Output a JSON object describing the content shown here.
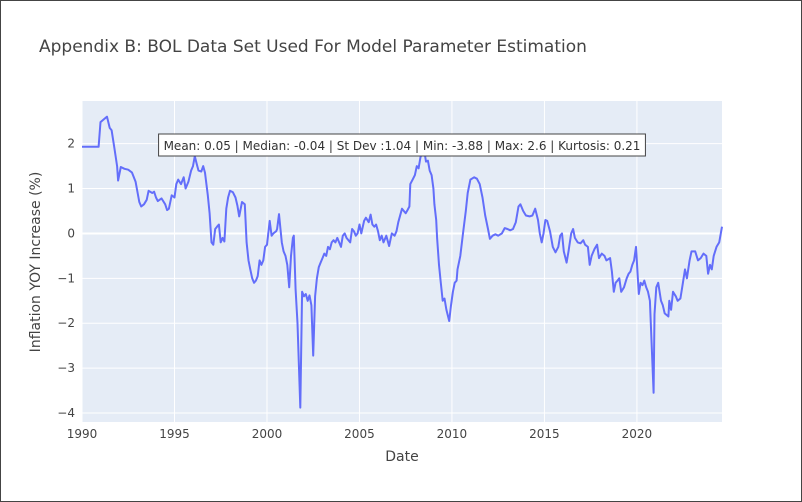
{
  "chart_data": {
    "type": "line",
    "title": "Appendix B: BOL Data Set Used For Model Parameter Estimation",
    "xlabel": "Date",
    "ylabel": "Inflation YOY Increase (%)",
    "xlim": [
      1990,
      2024.6
    ],
    "ylim": [
      -4.2,
      2.95
    ],
    "x_ticks": [
      1990,
      1995,
      2000,
      2005,
      2010,
      2015,
      2020
    ],
    "y_ticks": [
      -4,
      -3,
      -2,
      -1,
      0,
      1,
      2
    ],
    "y_tick_labels": [
      "−4",
      "−3",
      "−2",
      "−1",
      "0",
      "1",
      "2"
    ],
    "grid": true,
    "legend": "none",
    "annotation": "Mean: 0.05 | Median: -0.04 | St Dev :1.04 | Min: -3.88 | Max: 2.6 | Kurtosis: 0.21",
    "series": [
      {
        "color": "#636efa",
        "points": [
          [
            1990.0,
            1.93
          ],
          [
            1990.5,
            1.93
          ],
          [
            1990.9,
            1.93
          ],
          [
            1991.0,
            2.48
          ],
          [
            1991.2,
            2.55
          ],
          [
            1991.35,
            2.6
          ],
          [
            1991.5,
            2.35
          ],
          [
            1991.6,
            2.3
          ],
          [
            1991.75,
            1.9
          ],
          [
            1991.9,
            1.5
          ],
          [
            1991.95,
            1.18
          ],
          [
            1992.1,
            1.48
          ],
          [
            1992.3,
            1.44
          ],
          [
            1992.5,
            1.42
          ],
          [
            1992.7,
            1.36
          ],
          [
            1992.9,
            1.15
          ],
          [
            1993.1,
            0.7
          ],
          [
            1993.2,
            0.6
          ],
          [
            1993.35,
            0.65
          ],
          [
            1993.5,
            0.75
          ],
          [
            1993.6,
            0.95
          ],
          [
            1993.8,
            0.9
          ],
          [
            1993.9,
            0.93
          ],
          [
            1994.0,
            0.8
          ],
          [
            1994.1,
            0.72
          ],
          [
            1994.3,
            0.78
          ],
          [
            1994.5,
            0.65
          ],
          [
            1994.6,
            0.52
          ],
          [
            1994.7,
            0.55
          ],
          [
            1994.85,
            0.85
          ],
          [
            1995.0,
            0.8
          ],
          [
            1995.1,
            1.1
          ],
          [
            1995.2,
            1.2
          ],
          [
            1995.35,
            1.1
          ],
          [
            1995.5,
            1.25
          ],
          [
            1995.6,
            1.0
          ],
          [
            1995.75,
            1.15
          ],
          [
            1995.9,
            1.4
          ],
          [
            1996.0,
            1.5
          ],
          [
            1996.1,
            1.72
          ],
          [
            1996.2,
            1.55
          ],
          [
            1996.3,
            1.4
          ],
          [
            1996.45,
            1.38
          ],
          [
            1996.55,
            1.5
          ],
          [
            1996.65,
            1.35
          ],
          [
            1996.8,
            0.85
          ],
          [
            1996.9,
            0.45
          ],
          [
            1997.0,
            -0.2
          ],
          [
            1997.1,
            -0.25
          ],
          [
            1997.2,
            0.1
          ],
          [
            1997.3,
            0.15
          ],
          [
            1997.4,
            0.2
          ],
          [
            1997.5,
            -0.2
          ],
          [
            1997.6,
            -0.1
          ],
          [
            1997.7,
            -0.18
          ],
          [
            1997.8,
            0.55
          ],
          [
            1997.9,
            0.8
          ],
          [
            1998.0,
            0.95
          ],
          [
            1998.15,
            0.92
          ],
          [
            1998.3,
            0.8
          ],
          [
            1998.4,
            0.62
          ],
          [
            1998.5,
            0.38
          ],
          [
            1998.65,
            0.7
          ],
          [
            1998.8,
            0.65
          ],
          [
            1998.9,
            -0.2
          ],
          [
            1999.0,
            -0.6
          ],
          [
            1999.1,
            -0.8
          ],
          [
            1999.2,
            -1.0
          ],
          [
            1999.3,
            -1.1
          ],
          [
            1999.4,
            -1.05
          ],
          [
            1999.5,
            -0.95
          ],
          [
            1999.6,
            -0.6
          ],
          [
            1999.7,
            -0.7
          ],
          [
            1999.8,
            -0.6
          ],
          [
            1999.9,
            -0.3
          ],
          [
            2000.0,
            -0.25
          ],
          [
            2000.15,
            0.28
          ],
          [
            2000.25,
            -0.05
          ],
          [
            2000.35,
            0.0
          ],
          [
            2000.5,
            0.05
          ],
          [
            2000.55,
            0.1
          ],
          [
            2000.65,
            0.43
          ],
          [
            2000.8,
            -0.2
          ],
          [
            2000.9,
            -0.4
          ],
          [
            2001.0,
            -0.5
          ],
          [
            2001.1,
            -0.7
          ],
          [
            2001.2,
            -1.2
          ],
          [
            2001.3,
            -0.5
          ],
          [
            2001.4,
            -0.1
          ],
          [
            2001.45,
            -0.05
          ],
          [
            2001.55,
            -1.25
          ],
          [
            2001.65,
            -2.0
          ],
          [
            2001.8,
            -3.88
          ],
          [
            2001.9,
            -1.3
          ],
          [
            2002.0,
            -1.4
          ],
          [
            2002.1,
            -1.35
          ],
          [
            2002.2,
            -1.5
          ],
          [
            2002.3,
            -1.38
          ],
          [
            2002.4,
            -1.6
          ],
          [
            2002.5,
            -2.72
          ],
          [
            2002.6,
            -1.4
          ],
          [
            2002.7,
            -1.0
          ],
          [
            2002.8,
            -0.75
          ],
          [
            2002.9,
            -0.65
          ],
          [
            2003.0,
            -0.55
          ],
          [
            2003.1,
            -0.45
          ],
          [
            2003.2,
            -0.5
          ],
          [
            2003.3,
            -0.3
          ],
          [
            2003.4,
            -0.35
          ],
          [
            2003.5,
            -0.2
          ],
          [
            2003.6,
            -0.15
          ],
          [
            2003.7,
            -0.2
          ],
          [
            2003.8,
            -0.1
          ],
          [
            2004.0,
            -0.3
          ],
          [
            2004.1,
            -0.05
          ],
          [
            2004.2,
            0.0
          ],
          [
            2004.3,
            -0.1
          ],
          [
            2004.5,
            -0.2
          ],
          [
            2004.6,
            0.1
          ],
          [
            2004.7,
            0.05
          ],
          [
            2004.8,
            -0.05
          ],
          [
            2004.9,
            0.0
          ],
          [
            2005.0,
            0.2
          ],
          [
            2005.1,
            0.0
          ],
          [
            2005.25,
            0.28
          ],
          [
            2005.35,
            0.35
          ],
          [
            2005.5,
            0.25
          ],
          [
            2005.6,
            0.42
          ],
          [
            2005.7,
            0.2
          ],
          [
            2005.8,
            0.15
          ],
          [
            2005.9,
            0.2
          ],
          [
            2006.0,
            0.05
          ],
          [
            2006.1,
            -0.15
          ],
          [
            2006.2,
            -0.05
          ],
          [
            2006.3,
            -0.2
          ],
          [
            2006.45,
            -0.05
          ],
          [
            2006.6,
            -0.28
          ],
          [
            2006.75,
            0.0
          ],
          [
            2006.9,
            -0.05
          ],
          [
            2007.0,
            0.05
          ],
          [
            2007.1,
            0.25
          ],
          [
            2007.3,
            0.55
          ],
          [
            2007.5,
            0.45
          ],
          [
            2007.6,
            0.52
          ],
          [
            2007.7,
            0.6
          ],
          [
            2007.75,
            1.1
          ],
          [
            2007.9,
            1.22
          ],
          [
            2008.0,
            1.3
          ],
          [
            2008.1,
            1.5
          ],
          [
            2008.2,
            1.45
          ],
          [
            2008.3,
            1.7
          ],
          [
            2008.4,
            1.78
          ],
          [
            2008.5,
            1.85
          ],
          [
            2008.6,
            1.6
          ],
          [
            2008.7,
            1.62
          ],
          [
            2008.8,
            1.4
          ],
          [
            2008.9,
            1.3
          ],
          [
            2009.0,
            1.0
          ],
          [
            2009.05,
            0.65
          ],
          [
            2009.15,
            0.3
          ],
          [
            2009.2,
            -0.1
          ],
          [
            2009.3,
            -0.7
          ],
          [
            2009.4,
            -1.1
          ],
          [
            2009.5,
            -1.5
          ],
          [
            2009.6,
            -1.45
          ],
          [
            2009.7,
            -1.7
          ],
          [
            2009.85,
            -1.95
          ],
          [
            2009.95,
            -1.6
          ],
          [
            2010.05,
            -1.3
          ],
          [
            2010.15,
            -1.1
          ],
          [
            2010.25,
            -1.05
          ],
          [
            2010.3,
            -0.8
          ],
          [
            2010.45,
            -0.5
          ],
          [
            2010.6,
            0.0
          ],
          [
            2010.75,
            0.5
          ],
          [
            2010.85,
            0.9
          ],
          [
            2011.0,
            1.2
          ],
          [
            2011.2,
            1.25
          ],
          [
            2011.35,
            1.22
          ],
          [
            2011.5,
            1.1
          ],
          [
            2011.65,
            0.8
          ],
          [
            2011.8,
            0.4
          ],
          [
            2011.95,
            0.1
          ],
          [
            2012.05,
            -0.12
          ],
          [
            2012.2,
            -0.05
          ],
          [
            2012.35,
            -0.02
          ],
          [
            2012.5,
            -0.05
          ],
          [
            2012.7,
            0.0
          ],
          [
            2012.85,
            0.12
          ],
          [
            2013.0,
            0.1
          ],
          [
            2013.15,
            0.07
          ],
          [
            2013.3,
            0.1
          ],
          [
            2013.45,
            0.25
          ],
          [
            2013.6,
            0.6
          ],
          [
            2013.7,
            0.65
          ],
          [
            2013.85,
            0.5
          ],
          [
            2014.0,
            0.4
          ],
          [
            2014.2,
            0.38
          ],
          [
            2014.35,
            0.4
          ],
          [
            2014.5,
            0.55
          ],
          [
            2014.65,
            0.3
          ],
          [
            2014.75,
            0.0
          ],
          [
            2014.85,
            -0.2
          ],
          [
            2014.95,
            0.0
          ],
          [
            2015.05,
            0.3
          ],
          [
            2015.15,
            0.28
          ],
          [
            2015.3,
            0.05
          ],
          [
            2015.45,
            -0.3
          ],
          [
            2015.6,
            -0.42
          ],
          [
            2015.75,
            -0.3
          ],
          [
            2015.85,
            -0.05
          ],
          [
            2015.95,
            0.0
          ],
          [
            2016.05,
            -0.4
          ],
          [
            2016.2,
            -0.65
          ],
          [
            2016.3,
            -0.4
          ],
          [
            2016.45,
            0.0
          ],
          [
            2016.55,
            0.1
          ],
          [
            2016.65,
            -0.1
          ],
          [
            2016.8,
            -0.2
          ],
          [
            2016.95,
            -0.22
          ],
          [
            2017.1,
            -0.15
          ],
          [
            2017.2,
            -0.25
          ],
          [
            2017.35,
            -0.3
          ],
          [
            2017.45,
            -0.7
          ],
          [
            2017.55,
            -0.5
          ],
          [
            2017.7,
            -0.35
          ],
          [
            2017.85,
            -0.25
          ],
          [
            2017.95,
            -0.55
          ],
          [
            2018.1,
            -0.45
          ],
          [
            2018.25,
            -0.5
          ],
          [
            2018.35,
            -0.6
          ],
          [
            2018.55,
            -0.55
          ],
          [
            2018.65,
            -0.85
          ],
          [
            2018.75,
            -1.3
          ],
          [
            2018.85,
            -1.1
          ],
          [
            2018.95,
            -1.05
          ],
          [
            2019.05,
            -1.0
          ],
          [
            2019.15,
            -1.3
          ],
          [
            2019.3,
            -1.2
          ],
          [
            2019.45,
            -1.0
          ],
          [
            2019.55,
            -0.9
          ],
          [
            2019.65,
            -0.85
          ],
          [
            2019.75,
            -0.7
          ],
          [
            2019.85,
            -0.6
          ],
          [
            2019.95,
            -0.3
          ],
          [
            2020.1,
            -1.35
          ],
          [
            2020.2,
            -1.1
          ],
          [
            2020.3,
            -1.15
          ],
          [
            2020.4,
            -1.05
          ],
          [
            2020.5,
            -1.2
          ],
          [
            2020.6,
            -1.3
          ],
          [
            2020.7,
            -1.5
          ],
          [
            2020.75,
            -2.0
          ],
          [
            2020.9,
            -3.55
          ],
          [
            2020.95,
            -1.8
          ],
          [
            2021.05,
            -1.2
          ],
          [
            2021.15,
            -1.1
          ],
          [
            2021.3,
            -1.5
          ],
          [
            2021.4,
            -1.6
          ],
          [
            2021.5,
            -1.78
          ],
          [
            2021.7,
            -1.85
          ],
          [
            2021.75,
            -1.5
          ],
          [
            2021.85,
            -1.7
          ],
          [
            2021.95,
            -1.3
          ],
          [
            2022.1,
            -1.4
          ],
          [
            2022.2,
            -1.5
          ],
          [
            2022.35,
            -1.45
          ],
          [
            2022.45,
            -1.2
          ],
          [
            2022.6,
            -0.8
          ],
          [
            2022.7,
            -1.0
          ],
          [
            2022.85,
            -0.6
          ],
          [
            2022.95,
            -0.4
          ],
          [
            2023.15,
            -0.4
          ],
          [
            2023.3,
            -0.6
          ],
          [
            2023.45,
            -0.55
          ],
          [
            2023.6,
            -0.45
          ],
          [
            2023.75,
            -0.5
          ],
          [
            2023.85,
            -0.9
          ],
          [
            2023.95,
            -0.7
          ],
          [
            2024.05,
            -0.8
          ],
          [
            2024.15,
            -0.5
          ],
          [
            2024.3,
            -0.3
          ],
          [
            2024.45,
            -0.2
          ],
          [
            2024.6,
            0.15
          ]
        ]
      }
    ]
  }
}
